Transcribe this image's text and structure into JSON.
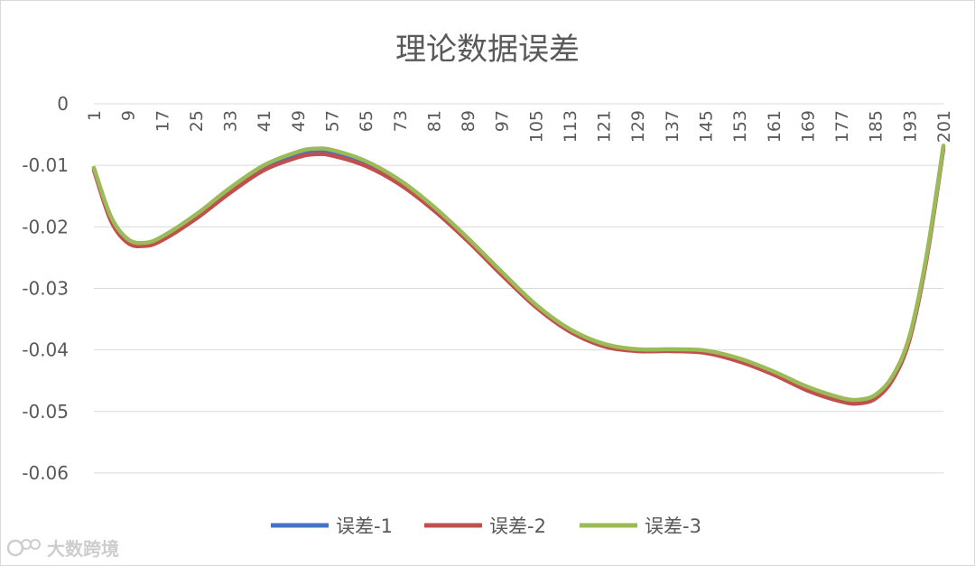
{
  "chart_data": {
    "type": "line",
    "title": "理论数据误差",
    "ylim": [
      -0.065,
      0
    ],
    "yticks": [
      0,
      -0.01,
      -0.02,
      -0.03,
      -0.04,
      -0.05,
      -0.06
    ],
    "ytick_labels": [
      "0",
      "-0.01",
      "-0.02",
      "-0.03",
      "-0.04",
      "-0.05",
      "-0.06"
    ],
    "x_range": [
      1,
      201
    ],
    "x_tick_labels": [
      "1",
      "9",
      "17",
      "25",
      "33",
      "41",
      "49",
      "57",
      "65",
      "73",
      "81",
      "89",
      "97",
      "105",
      "113",
      "121",
      "129",
      "137",
      "145",
      "153",
      "161",
      "169",
      "177",
      "185",
      "193",
      "201"
    ],
    "grid": true,
    "legend_position": "bottom",
    "series": [
      {
        "name": "误差-1",
        "color": "#4472c4",
        "x": [
          1,
          5,
          9,
          13,
          17,
          25,
          33,
          41,
          49,
          53,
          57,
          65,
          73,
          81,
          89,
          97,
          105,
          113,
          121,
          129,
          137,
          145,
          153,
          161,
          169,
          177,
          181,
          185,
          189,
          193,
          197,
          201
        ],
        "y": [
          -0.0105,
          -0.0185,
          -0.0222,
          -0.0228,
          -0.0218,
          -0.0183,
          -0.0141,
          -0.0104,
          -0.0083,
          -0.0078,
          -0.008,
          -0.0097,
          -0.0128,
          -0.017,
          -0.022,
          -0.0275,
          -0.0328,
          -0.0368,
          -0.0392,
          -0.04,
          -0.04,
          -0.0403,
          -0.0416,
          -0.0437,
          -0.0462,
          -0.048,
          -0.0483,
          -0.0475,
          -0.0445,
          -0.038,
          -0.025,
          -0.007
        ]
      },
      {
        "name": "误差-2",
        "color": "#c0504d",
        "x": [
          1,
          5,
          9,
          13,
          17,
          25,
          33,
          41,
          49,
          53,
          57,
          65,
          73,
          81,
          89,
          97,
          105,
          113,
          121,
          129,
          137,
          145,
          153,
          161,
          169,
          177,
          181,
          185,
          189,
          193,
          197,
          201
        ],
        "y": [
          -0.0108,
          -0.019,
          -0.0226,
          -0.0231,
          -0.0222,
          -0.0187,
          -0.0145,
          -0.0108,
          -0.0087,
          -0.0082,
          -0.0084,
          -0.0101,
          -0.0131,
          -0.0173,
          -0.0223,
          -0.0278,
          -0.033,
          -0.037,
          -0.0394,
          -0.0402,
          -0.0402,
          -0.0405,
          -0.0419,
          -0.044,
          -0.0466,
          -0.0484,
          -0.0487,
          -0.0479,
          -0.0449,
          -0.0384,
          -0.0254,
          -0.0073
        ]
      },
      {
        "name": "误差-3",
        "color": "#9bbb59",
        "x": [
          1,
          5,
          9,
          13,
          17,
          25,
          33,
          41,
          49,
          53,
          57,
          65,
          73,
          81,
          89,
          97,
          105,
          113,
          121,
          129,
          137,
          145,
          153,
          161,
          169,
          177,
          181,
          185,
          189,
          193,
          197,
          201
        ],
        "y": [
          -0.0104,
          -0.0183,
          -0.022,
          -0.0226,
          -0.0216,
          -0.018,
          -0.0137,
          -0.01,
          -0.0078,
          -0.0073,
          -0.0075,
          -0.0093,
          -0.0124,
          -0.0167,
          -0.0218,
          -0.0273,
          -0.0326,
          -0.0366,
          -0.039,
          -0.0399,
          -0.0399,
          -0.0401,
          -0.0414,
          -0.0435,
          -0.046,
          -0.0478,
          -0.0481,
          -0.0473,
          -0.0443,
          -0.0378,
          -0.0248,
          -0.0068
        ]
      }
    ]
  },
  "watermark": {
    "text": "大数跨境"
  }
}
